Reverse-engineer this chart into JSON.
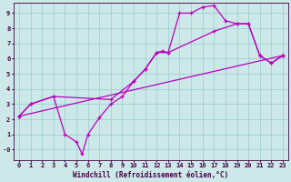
{
  "xlabel": "Windchill (Refroidissement éolien,°C)",
  "background_color": "#cce8e8",
  "grid_color": "#99cccc",
  "line_color": "#bb00bb",
  "xlim": [
    -0.5,
    23.5
  ],
  "ylim": [
    -0.7,
    9.7
  ],
  "xticks": [
    0,
    1,
    2,
    3,
    4,
    5,
    6,
    7,
    8,
    9,
    10,
    11,
    12,
    13,
    14,
    15,
    16,
    17,
    18,
    19,
    20,
    21,
    22,
    23
  ],
  "yticks": [
    0,
    1,
    2,
    3,
    4,
    5,
    6,
    7,
    8,
    9
  ],
  "ytick_labels": [
    "-0",
    "1",
    "2",
    "3",
    "4",
    "5",
    "6",
    "7",
    "8",
    "9"
  ],
  "series1_x": [
    0,
    1,
    3,
    4,
    5,
    5.5,
    6,
    7,
    8,
    9,
    10,
    11,
    12,
    12.5,
    13,
    14,
    15,
    16,
    17,
    18,
    19,
    20,
    21,
    22,
    23
  ],
  "series1_y": [
    2.2,
    3.0,
    3.5,
    1.0,
    0.5,
    -0.3,
    1.0,
    2.1,
    3.0,
    3.5,
    4.5,
    5.3,
    6.4,
    6.5,
    6.4,
    9.0,
    9.0,
    9.4,
    9.5,
    8.5,
    8.3,
    8.3,
    6.2,
    5.7,
    6.2
  ],
  "series2_x": [
    0,
    1,
    3,
    8,
    10,
    11,
    12,
    13,
    17,
    19,
    20,
    21,
    22,
    23
  ],
  "series2_y": [
    2.2,
    3.0,
    3.5,
    3.3,
    4.5,
    5.3,
    6.4,
    6.4,
    7.8,
    8.3,
    8.3,
    6.2,
    5.7,
    6.2
  ],
  "series3_x": [
    0,
    23
  ],
  "series3_y": [
    2.2,
    6.2
  ],
  "marker": "+"
}
